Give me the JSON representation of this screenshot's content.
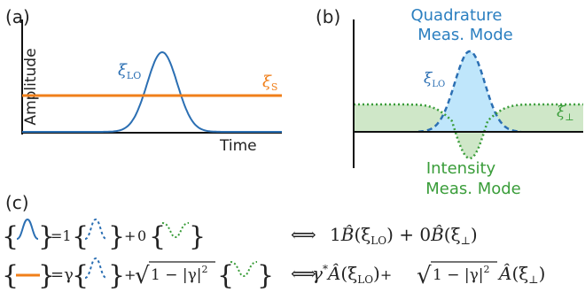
{
  "panels": {
    "a": {
      "label": "(a)",
      "ylabel": "Amplitude",
      "xlabel": "Time",
      "curve_lo": {
        "label": "ξ",
        "sub": "LO",
        "color": "#2b6fb3"
      },
      "curve_s": {
        "label": "ξ",
        "sub": "S",
        "color": "#f07f1a"
      }
    },
    "b": {
      "label": "(b)",
      "quadrature_title": [
        "Quadrature",
        "Meas. Mode"
      ],
      "intensity_title": [
        "Intensity",
        "Meas. Mode"
      ],
      "curve_lo": {
        "label": "ξ",
        "sub": "LO",
        "color": "#2b6fb3"
      },
      "curve_perp": {
        "label": "ξ",
        "sub": "⊥",
        "color": "#3a9d3a"
      }
    },
    "c": {
      "label": "(c)",
      "row1": {
        "lhs": "=1",
        "plus": "+",
        "zero": "0",
        "rhs_arrow": "⟺",
        "rhs_coeff1": "1",
        "rhs_op1": "B̂",
        "rhs_arg1": "(ξ",
        "rhs_arg1_sub": "LO",
        "rhs_close1": ")",
        "rhs_plus": " + 0",
        "rhs_op2": "B̂",
        "rhs_arg2": "(ξ",
        "rhs_arg2_sub": "⊥",
        "rhs_close2": ")"
      },
      "row2": {
        "lhs": "=γ",
        "plus": "+",
        "sqrt": "√",
        "sqrt_body": "1 − |γ|",
        "sqrt_exp": "2",
        "rhs_arrow": "⟺",
        "rhs_gamma": "γ",
        "rhs_star": "*",
        "rhs_op1": "Â",
        "rhs_arg1": "(ξ",
        "rhs_arg1_sub": "LO",
        "rhs_close1": ")",
        "rhs_plus": "+",
        "rhs_op2": "Â",
        "rhs_arg2": "(ξ",
        "rhs_arg2_sub": "⊥",
        "rhs_close2": ")"
      }
    }
  },
  "colors": {
    "blue": "#2b6fb3",
    "orange": "#f07f1a",
    "green": "#3a9d3a",
    "blue_fill": "#bfe6fb",
    "green_fill": "#cfe7c8"
  }
}
